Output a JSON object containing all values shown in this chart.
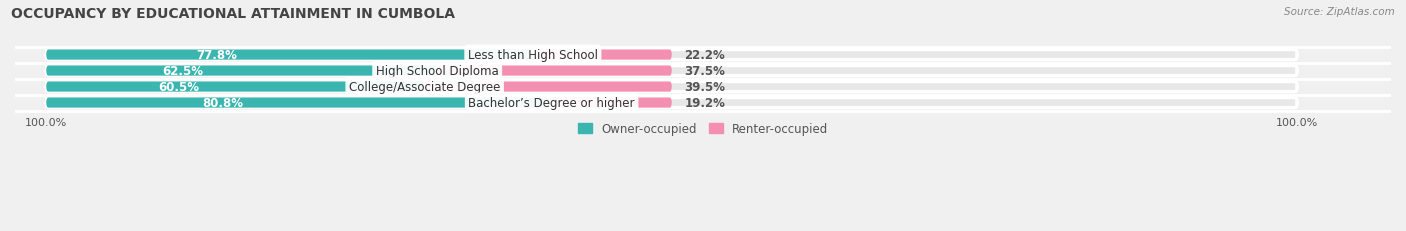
{
  "title": "OCCUPANCY BY EDUCATIONAL ATTAINMENT IN CUMBOLA",
  "source": "Source: ZipAtlas.com",
  "categories": [
    "Less than High School",
    "High School Diploma",
    "College/Associate Degree",
    "Bachelor’s Degree or higher"
  ],
  "owner_values": [
    77.8,
    62.5,
    60.5,
    80.8
  ],
  "renter_values": [
    22.2,
    37.5,
    39.5,
    19.2
  ],
  "owner_color": "#3ab5b0",
  "renter_color": "#f48fb1",
  "background_color": "#f0f0f0",
  "bar_bg_color": "#e8e8e8",
  "bar_height": 0.62,
  "title_fontsize": 10,
  "label_fontsize": 8.5,
  "tick_fontsize": 8,
  "legend_fontsize": 8.5
}
